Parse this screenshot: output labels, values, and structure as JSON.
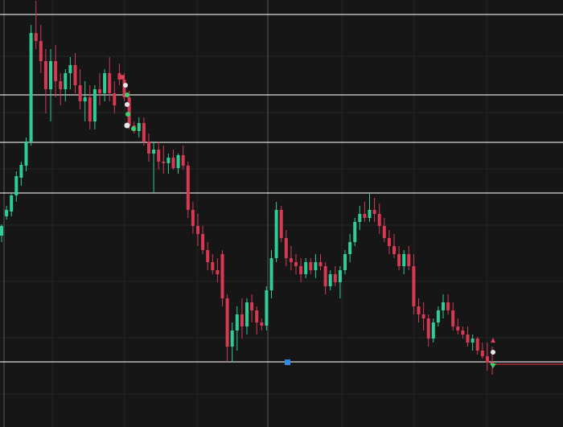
{
  "chart_data": {
    "type": "candlestick",
    "ylim": [
      0,
      531
    ],
    "up_color": "#2ecc96",
    "down_color": "#d63a52",
    "level_color": "#d9d9d9",
    "levels": [
      513,
      413,
      354,
      291,
      81
    ],
    "price_line": {
      "value": 78,
      "color": "#c0303e"
    },
    "ohlc": [
      [
        238,
        252,
        230,
        250
      ],
      [
        262,
        275,
        258,
        270
      ],
      [
        268,
        292,
        262,
        288
      ],
      [
        288,
        318,
        280,
        312
      ],
      [
        310,
        330,
        300,
        326
      ],
      [
        325,
        360,
        318,
        355
      ],
      [
        355,
        500,
        350,
        490
      ],
      [
        490,
        530,
        470,
        480
      ],
      [
        480,
        500,
        440,
        455
      ],
      [
        455,
        470,
        390,
        420
      ],
      [
        420,
        470,
        380,
        455
      ],
      [
        455,
        475,
        410,
        430
      ],
      [
        430,
        440,
        400,
        420
      ],
      [
        420,
        445,
        405,
        440
      ],
      [
        440,
        460,
        420,
        450
      ],
      [
        450,
        465,
        415,
        425
      ],
      [
        425,
        445,
        395,
        405
      ],
      [
        405,
        430,
        380,
        410
      ],
      [
        410,
        425,
        370,
        380
      ],
      [
        380,
        425,
        370,
        420
      ],
      [
        420,
        440,
        400,
        415
      ],
      [
        415,
        445,
        405,
        440
      ],
      [
        440,
        460,
        405,
        415
      ],
      [
        415,
        430,
        390,
        400
      ],
      [
        440,
        452,
        425,
        432
      ],
      [
        432,
        440,
        405,
        410
      ],
      [
        410,
        418,
        370,
        375
      ],
      [
        375,
        380,
        365,
        368
      ],
      [
        368,
        385,
        360,
        378
      ],
      [
        378,
        385,
        350,
        355
      ],
      [
        355,
        365,
        330,
        340
      ],
      [
        340,
        355,
        290,
        345
      ],
      [
        345,
        355,
        320,
        330
      ],
      [
        330,
        350,
        315,
        328
      ],
      [
        328,
        340,
        315,
        335
      ],
      [
        335,
        345,
        320,
        322
      ],
      [
        322,
        340,
        315,
        338
      ],
      [
        338,
        350,
        320,
        325
      ],
      [
        325,
        330,
        260,
        270
      ],
      [
        270,
        280,
        240,
        250
      ],
      [
        250,
        265,
        225,
        240
      ],
      [
        240,
        250,
        215,
        220
      ],
      [
        220,
        230,
        195,
        205
      ],
      [
        205,
        215,
        190,
        195
      ],
      [
        195,
        210,
        180,
        190
      ],
      [
        215,
        220,
        150,
        160
      ],
      [
        160,
        165,
        81,
        100
      ],
      [
        100,
        130,
        81,
        120
      ],
      [
        120,
        150,
        95,
        140
      ],
      [
        140,
        160,
        110,
        125
      ],
      [
        125,
        160,
        115,
        155
      ],
      [
        155,
        165,
        130,
        145
      ],
      [
        145,
        150,
        115,
        130
      ],
      [
        130,
        135,
        120,
        126
      ],
      [
        126,
        175,
        120,
        170
      ],
      [
        170,
        220,
        160,
        210
      ],
      [
        210,
        280,
        205,
        270
      ],
      [
        270,
        275,
        230,
        235
      ],
      [
        235,
        245,
        200,
        210
      ],
      [
        210,
        225,
        195,
        205
      ],
      [
        205,
        215,
        190,
        200
      ],
      [
        200,
        210,
        180,
        190
      ],
      [
        190,
        210,
        185,
        205
      ],
      [
        205,
        210,
        190,
        195
      ],
      [
        195,
        215,
        185,
        205
      ],
      [
        205,
        215,
        195,
        200
      ],
      [
        200,
        205,
        165,
        175
      ],
      [
        175,
        195,
        170,
        190
      ],
      [
        190,
        200,
        175,
        180
      ],
      [
        180,
        200,
        160,
        195
      ],
      [
        195,
        220,
        190,
        215
      ],
      [
        215,
        240,
        205,
        230
      ],
      [
        230,
        260,
        225,
        255
      ],
      [
        255,
        275,
        245,
        265
      ],
      [
        265,
        280,
        255,
        260
      ],
      [
        260,
        290,
        255,
        270
      ],
      [
        270,
        285,
        255,
        265
      ],
      [
        265,
        278,
        240,
        250
      ],
      [
        250,
        260,
        230,
        235
      ],
      [
        235,
        245,
        215,
        225
      ],
      [
        225,
        240,
        210,
        215
      ],
      [
        215,
        225,
        195,
        200
      ],
      [
        200,
        220,
        190,
        215
      ],
      [
        215,
        225,
        195,
        200
      ],
      [
        200,
        215,
        140,
        150
      ],
      [
        150,
        160,
        130,
        140
      ],
      [
        140,
        155,
        120,
        135
      ],
      [
        135,
        140,
        100,
        110
      ],
      [
        110,
        135,
        105,
        130
      ],
      [
        130,
        150,
        125,
        145
      ],
      [
        145,
        165,
        135,
        155
      ],
      [
        155,
        165,
        140,
        145
      ],
      [
        145,
        155,
        120,
        125
      ],
      [
        125,
        135,
        115,
        120
      ],
      [
        120,
        125,
        110,
        115
      ],
      [
        115,
        125,
        100,
        105
      ],
      [
        105,
        115,
        95,
        110
      ],
      [
        110,
        112,
        90,
        95
      ],
      [
        95,
        105,
        85,
        88
      ],
      [
        88,
        105,
        70,
        80
      ],
      [
        80,
        100,
        65,
        78
      ]
    ]
  }
}
